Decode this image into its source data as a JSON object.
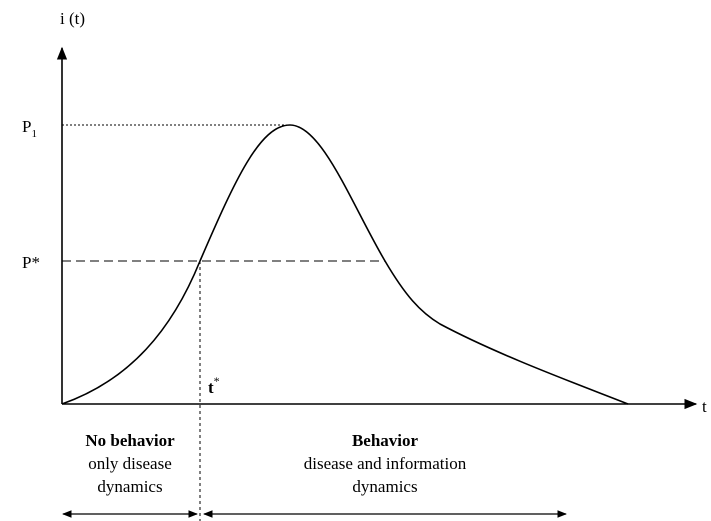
{
  "axes": {
    "y_label": "i (t)",
    "x_label": "t"
  },
  "levels": {
    "p1": {
      "base": "P",
      "sub": "1"
    },
    "p_star": "P*"
  },
  "time_marker": {
    "base": "t",
    "sup": "*"
  },
  "phases": [
    {
      "title": "No behavior",
      "lines": [
        "only disease",
        "dynamics"
      ]
    },
    {
      "title": "Behavior",
      "lines": [
        "disease and information",
        "dynamics"
      ]
    }
  ]
}
